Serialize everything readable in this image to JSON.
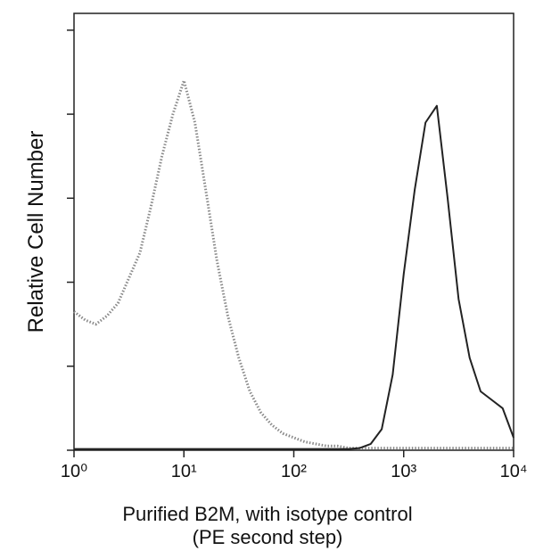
{
  "chart_data": {
    "type": "line",
    "xlabel": [
      "Purified B2M, with isotype control",
      "(PE second step)"
    ],
    "ylabel": "Relative Cell Number",
    "x_scale": "log",
    "x": [
      1,
      1.26,
      1.58,
      2,
      2.51,
      3.16,
      3.98,
      5.01,
      6.31,
      7.94,
      10,
      12.6,
      15.8,
      20,
      25.1,
      31.6,
      39.8,
      50.1,
      63.1,
      79.4,
      100,
      126,
      158,
      200,
      251,
      316,
      398,
      501,
      631,
      794,
      1000,
      1260,
      1580,
      2000,
      2510,
      3160,
      3980,
      5010,
      6310,
      7940,
      10000
    ],
    "series": [
      {
        "color": "#8a8a8a",
        "style": "dotted",
        "values": [
          33,
          31,
          30,
          32,
          35,
          41,
          47,
          58,
          70,
          80,
          88,
          78,
          62,
          45,
          32,
          22,
          14,
          9,
          6,
          4,
          3,
          2,
          1.5,
          1,
          1,
          0.5,
          0.5,
          0.5,
          0.5,
          0.5,
          0.5,
          0.5,
          0.5,
          0.5,
          0.5,
          0.5,
          0.5,
          0.5,
          0.5,
          0.5,
          0.5
        ]
      },
      {
        "color": "#222222",
        "style": "solid",
        "values": [
          0.3,
          0.3,
          0.3,
          0.3,
          0.3,
          0.3,
          0.3,
          0.3,
          0.3,
          0.3,
          0.3,
          0.3,
          0.3,
          0.3,
          0.3,
          0.3,
          0.3,
          0.3,
          0.3,
          0.3,
          0.3,
          0.3,
          0.3,
          0.3,
          0.3,
          0.3,
          0.5,
          1.5,
          5,
          18,
          42,
          62,
          78,
          82,
          60,
          36,
          22,
          14,
          12,
          10,
          3
        ]
      }
    ],
    "xlim": [
      1,
      10000
    ],
    "xticks": [
      {
        "value": 1,
        "label": "10⁰"
      },
      {
        "value": 10,
        "label": "10¹"
      },
      {
        "value": 100,
        "label": "10²"
      },
      {
        "value": 1000,
        "label": "10³"
      },
      {
        "value": 10000,
        "label": "10⁴"
      }
    ],
    "ylim": [
      0,
      104
    ],
    "yticks": [
      0,
      20,
      40,
      60,
      80,
      100
    ]
  }
}
